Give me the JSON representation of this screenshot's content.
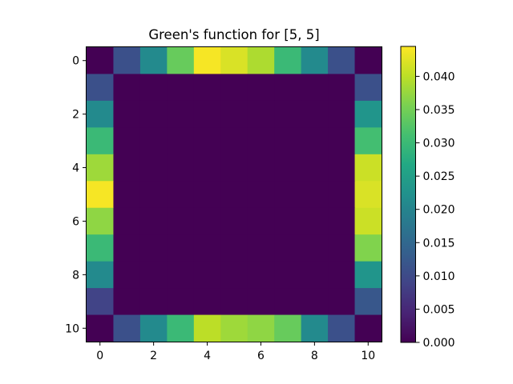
{
  "chart_data": {
    "type": "heatmap",
    "title": "Green's function for [5, 5]",
    "xlabel": "",
    "ylabel": "",
    "x_range": [
      0,
      10
    ],
    "y_range": [
      0,
      10
    ],
    "y_inverted": true,
    "x_ticks": [
      "0",
      "2",
      "4",
      "6",
      "8",
      "10"
    ],
    "y_ticks": [
      "0",
      "2",
      "4",
      "6",
      "8",
      "10"
    ],
    "colormap": "viridis",
    "color_range": [
      0,
      0.0445
    ],
    "colorbar_ticks": [
      "0.000",
      "0.005",
      "0.010",
      "0.015",
      "0.020",
      "0.025",
      "0.030",
      "0.035",
      "0.040"
    ],
    "grid": false,
    "values": [
      [
        0.0,
        0.011,
        0.021,
        0.034,
        0.044,
        0.042,
        0.039,
        0.03,
        0.021,
        0.011,
        0.0
      ],
      [
        0.011,
        0,
        0,
        0,
        0,
        0,
        0,
        0,
        0,
        0,
        0.011
      ],
      [
        0.021,
        0,
        0,
        0,
        0,
        0,
        0,
        0,
        0,
        0,
        0.023
      ],
      [
        0.03,
        0,
        0,
        0,
        0,
        0,
        0,
        0,
        0,
        0,
        0.031
      ],
      [
        0.038,
        0,
        0,
        0,
        0,
        0,
        0,
        0,
        0,
        0,
        0.041
      ],
      [
        0.044,
        0,
        0,
        0,
        0,
        0,
        0,
        0,
        0,
        0,
        0.042
      ],
      [
        0.037,
        0,
        0,
        0,
        0,
        0,
        0,
        0,
        0,
        0,
        0.041
      ],
      [
        0.03,
        0,
        0,
        0,
        0,
        0,
        0,
        0,
        0,
        0,
        0.036
      ],
      [
        0.021,
        0,
        0,
        0,
        0,
        0,
        0,
        0,
        0,
        0,
        0.023
      ],
      [
        0.009,
        0,
        0,
        0,
        0,
        0,
        0,
        0,
        0,
        0,
        0.012
      ],
      [
        0.0,
        0.011,
        0.021,
        0.03,
        0.04,
        0.038,
        0.037,
        0.034,
        0.021,
        0.011,
        0.0
      ]
    ]
  }
}
